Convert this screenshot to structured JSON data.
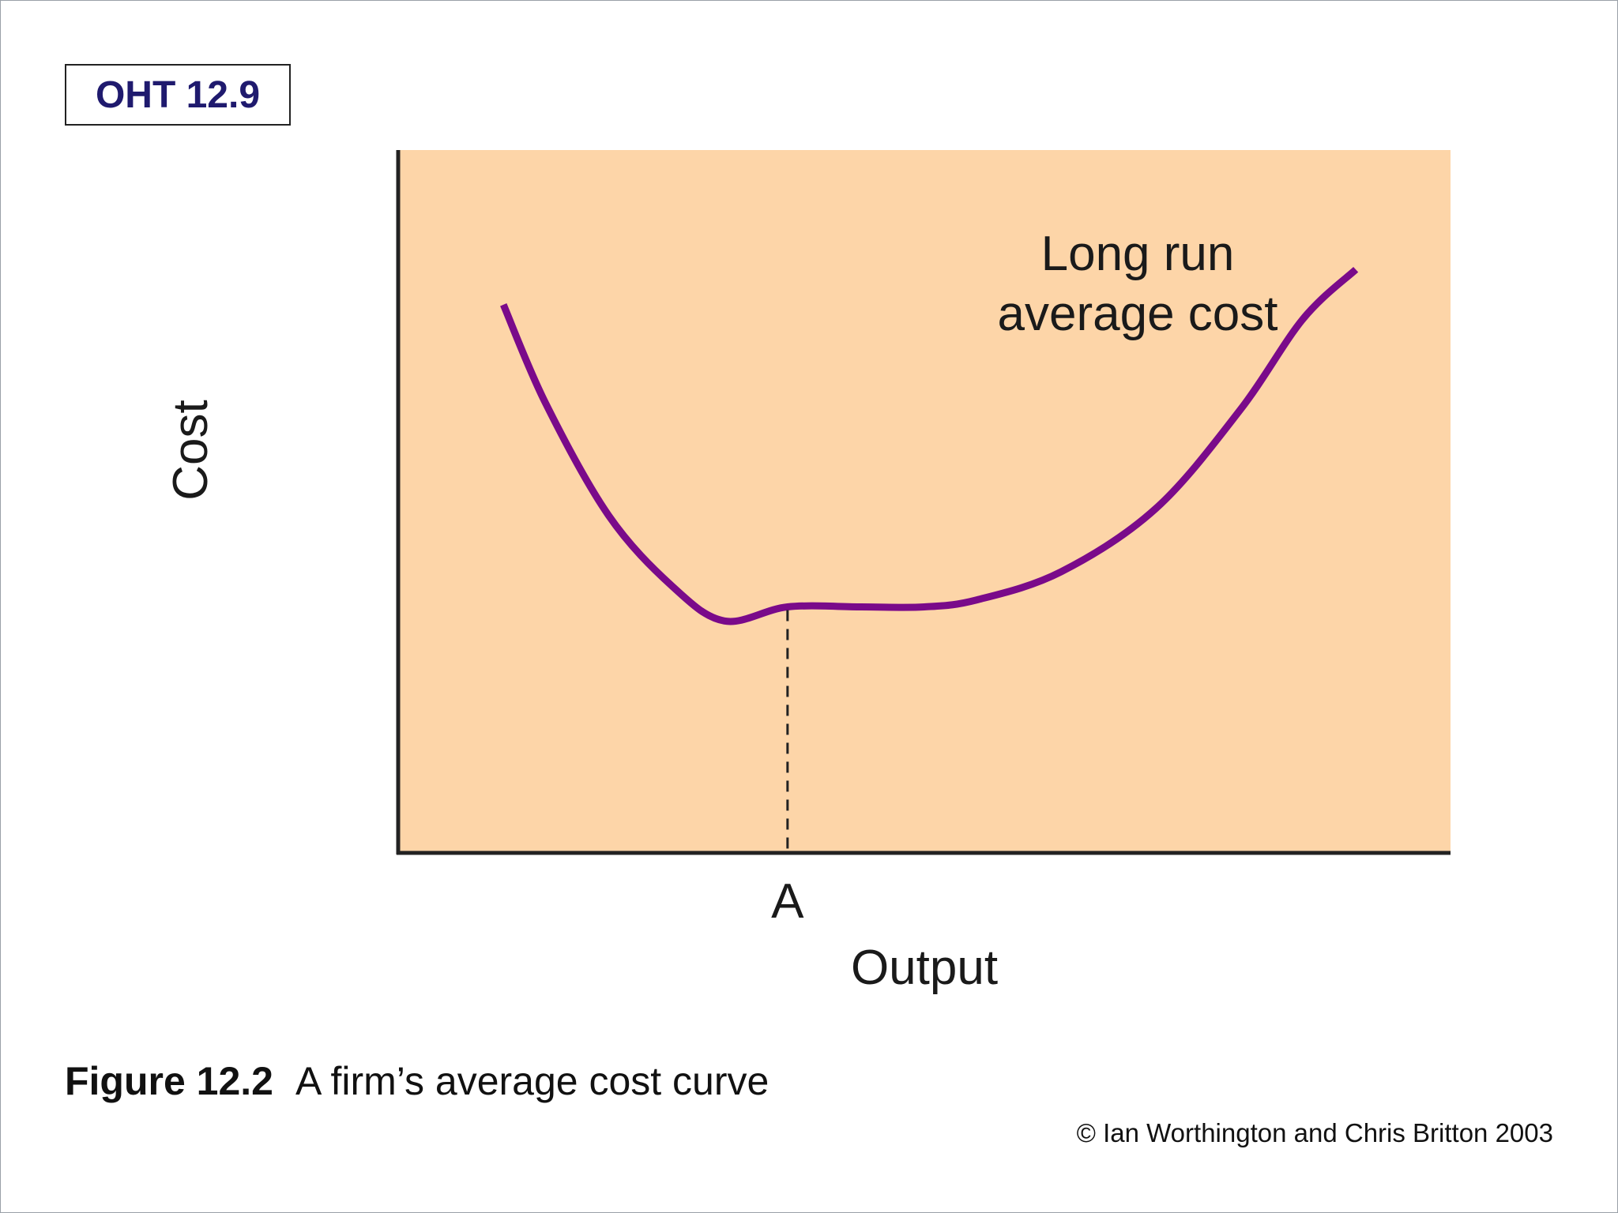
{
  "header": {
    "oht_label": "OHT 12.9"
  },
  "chart_data": {
    "type": "line",
    "title": "",
    "xlabel": "Output",
    "ylabel": "Cost",
    "curve_label": [
      "Long run",
      "average cost"
    ],
    "x_tick_labels": [
      {
        "label": "A",
        "x": 0.37
      }
    ],
    "series": [
      {
        "name": "Long run average cost",
        "color": "#7a0a8a",
        "x": [
          0.1,
          0.14,
          0.2,
          0.26,
          0.31,
          0.37,
          0.44,
          0.5,
          0.55,
          0.63,
          0.72,
          0.8,
          0.86,
          0.91
        ],
        "y": [
          0.78,
          0.64,
          0.48,
          0.38,
          0.33,
          0.35,
          0.35,
          0.35,
          0.36,
          0.4,
          0.49,
          0.63,
          0.76,
          0.83
        ]
      }
    ],
    "annotation": {
      "type": "vertical-dashed",
      "x": 0.37,
      "color": "#222222"
    },
    "background": "#fdd5a8",
    "ylim": [
      0,
      1
    ],
    "xlim": [
      0,
      1
    ],
    "grid": false
  },
  "caption": {
    "figure_label": "Figure 12.2",
    "text": "A firm’s average cost curve"
  },
  "copyright": "© Ian Worthington and Chris Britton 2003"
}
